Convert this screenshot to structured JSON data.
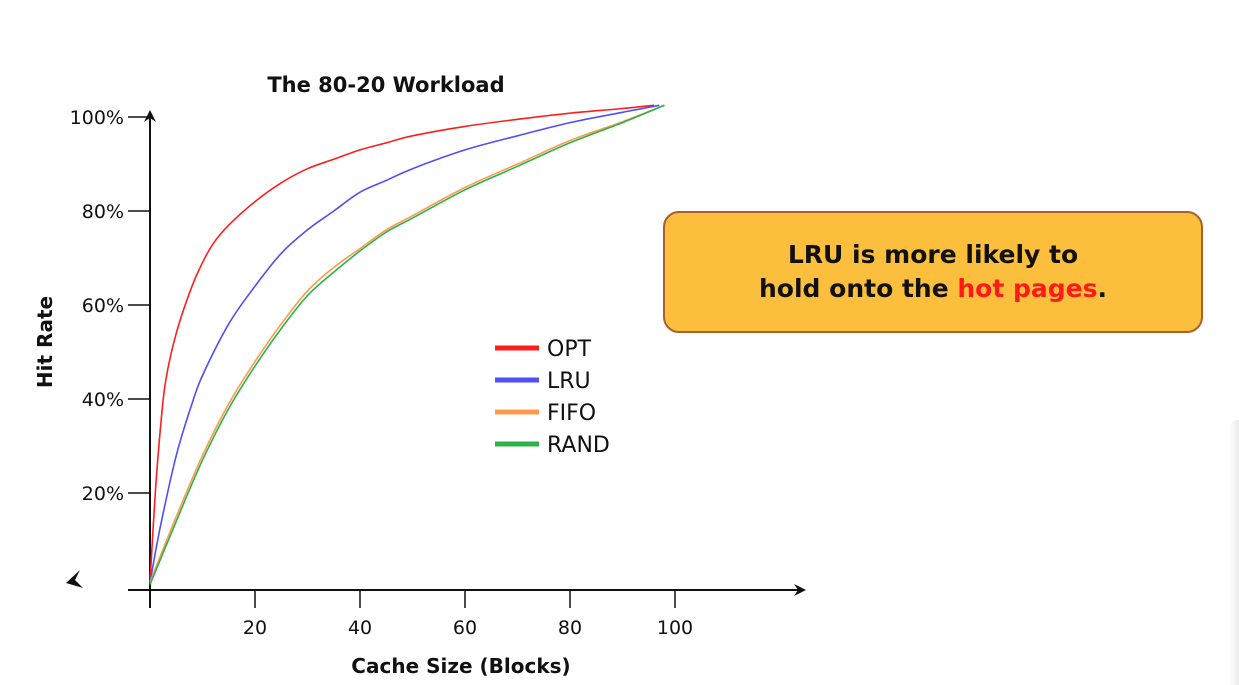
{
  "chart_data": {
    "type": "line",
    "title": "The 80-20 Workload",
    "xlabel": "Cache Size (Blocks)",
    "ylabel": "Hit Rate",
    "xlim": [
      0,
      125
    ],
    "ylim": [
      0,
      105
    ],
    "x_ticks": [
      20,
      40,
      60,
      80,
      100
    ],
    "x_tick_labels": [
      "20",
      "40",
      "60",
      "80",
      "100"
    ],
    "y_ticks": [
      20,
      40,
      60,
      80,
      100
    ],
    "y_tick_labels": [
      "20%",
      "40%",
      "60%",
      "80%",
      "100%"
    ],
    "grid": false,
    "legend_position": "center",
    "series": [
      {
        "name": "OPT",
        "color": "#ff1e1e",
        "x": [
          0,
          1,
          2,
          3,
          5,
          8,
          10,
          12,
          15,
          20,
          25,
          30,
          35,
          40,
          45,
          50,
          60,
          70,
          80,
          90,
          96
        ],
        "y": [
          1,
          20,
          34,
          44,
          54,
          64,
          69,
          73,
          77,
          82,
          86,
          89,
          91,
          93,
          94.5,
          96,
          98,
          99.5,
          100.8,
          101.8,
          102.5
        ]
      },
      {
        "name": "LRU",
        "color": "#4f4ff5",
        "x": [
          0,
          2,
          5,
          8,
          10,
          15,
          20,
          25,
          30,
          35,
          40,
          45,
          50,
          60,
          70,
          80,
          90,
          97
        ],
        "y": [
          1,
          13,
          28,
          39,
          45,
          56,
          64,
          71,
          76,
          80,
          84,
          86.5,
          89,
          93,
          96,
          98.8,
          101,
          102.5
        ]
      },
      {
        "name": "FIFO",
        "color": "#ff9b4a",
        "x": [
          0,
          5,
          10,
          15,
          20,
          25,
          30,
          35,
          40,
          45,
          50,
          60,
          70,
          80,
          90,
          98
        ],
        "y": [
          1,
          15,
          28,
          39,
          48,
          56,
          63,
          68,
          72,
          76,
          79,
          85,
          90,
          95,
          99,
          102.5
        ]
      },
      {
        "name": "RAND",
        "color": "#2db24b",
        "x": [
          0,
          5,
          10,
          15,
          20,
          25,
          30,
          35,
          40,
          45,
          50,
          60,
          70,
          80,
          90,
          98
        ],
        "y": [
          0.5,
          14,
          27,
          38,
          47,
          55,
          62,
          67,
          71.5,
          75.5,
          78.5,
          84.5,
          89.5,
          94.5,
          98.8,
          102.5
        ]
      }
    ]
  },
  "callout": {
    "line1": "LRU is more likely to",
    "line2_prefix": "hold onto the ",
    "line2_highlight": "hot pages",
    "line2_suffix": "."
  }
}
